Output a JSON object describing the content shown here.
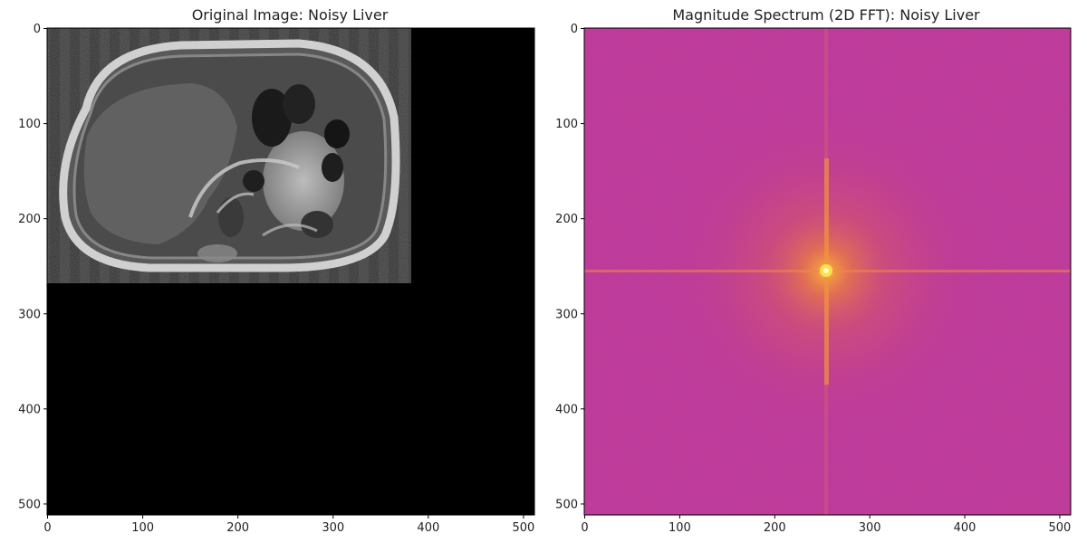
{
  "chart_data": [
    {
      "type": "heatmap",
      "title": "Original Image: Noisy Liver",
      "colormap": "gray",
      "xlim": [
        0,
        511
      ],
      "ylim": [
        511,
        0
      ],
      "xticks": [
        0,
        100,
        200,
        300,
        400,
        500
      ],
      "yticks": [
        0,
        100,
        200,
        300,
        400,
        500
      ],
      "content_extent": {
        "x": [
          0,
          383
        ],
        "y": [
          0,
          268
        ]
      },
      "content": "axial MRI slice of the abdomen with vertical stripe artifacts; remainder of the frame is black",
      "background_color": "#000000"
    },
    {
      "type": "heatmap",
      "title": "Magnitude Spectrum (2D FFT): Noisy Liver",
      "colormap": "plasma",
      "xlim": [
        0,
        511
      ],
      "ylim": [
        511,
        0
      ],
      "xticks": [
        0,
        100,
        200,
        300,
        400,
        500
      ],
      "yticks": [
        0,
        100,
        200,
        300,
        400,
        500
      ],
      "center": [
        256,
        256
      ],
      "content": "magnitude spectrum with bright DC peak at center and horizontal/vertical cross lines",
      "background_color": "#c23a8b",
      "peak_color": "#f6b93a"
    }
  ]
}
